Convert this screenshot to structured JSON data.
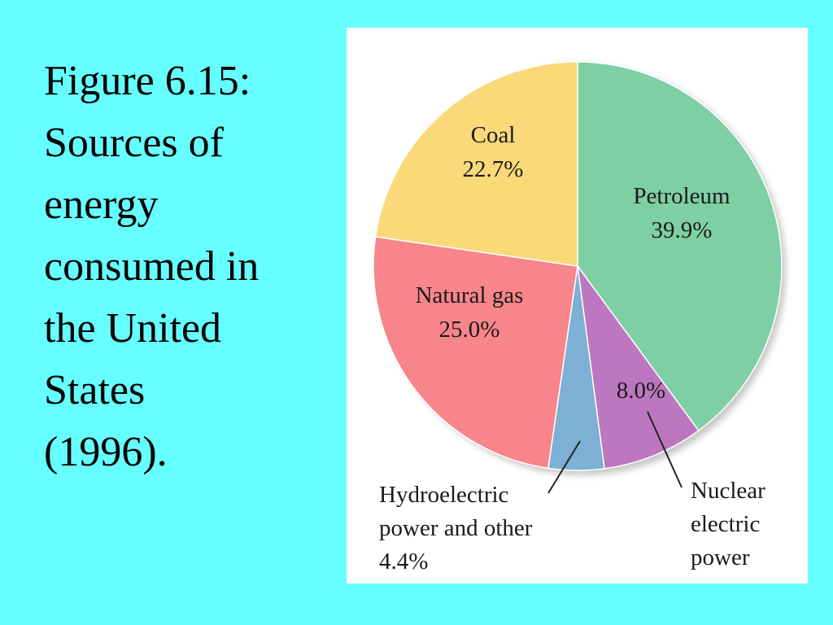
{
  "caption": {
    "lines": [
      "Figure 6.15:",
      "Sources of",
      "energy",
      "consumed in",
      "the United",
      "States",
      "(1996)."
    ]
  },
  "chart_data": {
    "type": "pie",
    "title": "",
    "slices": [
      {
        "name": "Petroleum",
        "value": 39.9,
        "pct_label": "39.9%",
        "color": "#7fcfa4"
      },
      {
        "name": "Nuclear electric power",
        "value": 8.0,
        "pct_label": "8.0%",
        "color": "#bd76c0"
      },
      {
        "name": "Hydroelectric power and other",
        "value": 4.4,
        "pct_label": "4.4%",
        "color": "#7db0d4"
      },
      {
        "name": "Natural gas",
        "value": 25.0,
        "pct_label": "25.0%",
        "color": "#f8858b"
      },
      {
        "name": "Coal",
        "value": 22.7,
        "pct_label": "22.7%",
        "color": "#fad979"
      }
    ],
    "labels": {
      "coal": [
        "Coal",
        "22.7%"
      ],
      "petroleum": [
        "Petroleum",
        "39.9%"
      ],
      "natural_gas": [
        "Natural gas",
        "25.0%"
      ],
      "nuclear_pct": "8.0%",
      "nuclear_name": [
        "Nuclear",
        "electric",
        "power"
      ],
      "hydro": [
        "Hydroelectric",
        "power and other",
        "4.4%"
      ]
    }
  }
}
